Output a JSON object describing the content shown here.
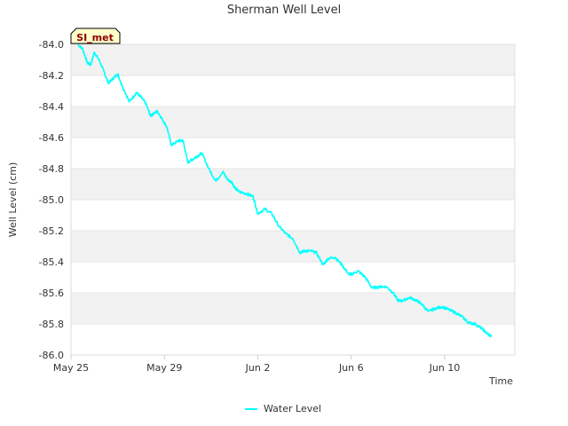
{
  "chart_data": {
    "type": "line",
    "title": "Sherman Well Level",
    "xlabel": "Time",
    "ylabel": "Well Level (cm)",
    "x_domain_days": [
      0,
      19
    ],
    "x_ticks": [
      {
        "day": 0,
        "label": "May 25"
      },
      {
        "day": 4,
        "label": "May 29"
      },
      {
        "day": 8,
        "label": "Jun 2"
      },
      {
        "day": 12,
        "label": "Jun 6"
      },
      {
        "day": 16,
        "label": "Jun 10"
      }
    ],
    "ylim": [
      -86.0,
      -84.0
    ],
    "y_ticks": [
      -84.0,
      -84.2,
      -84.4,
      -84.6,
      -84.8,
      -85.0,
      -85.2,
      -85.4,
      -85.6,
      -85.8,
      -86.0
    ],
    "y_tick_labels": [
      "-84.0",
      "-84.2",
      "-84.4",
      "-84.6",
      "-84.8",
      "-85.0",
      "-85.2",
      "-85.4",
      "-85.6",
      "-85.8",
      "-86.0"
    ],
    "grid": "horizontal bands",
    "series": [
      {
        "name": "Water Level",
        "color": "#00ffff",
        "x_days": [
          0.3,
          0.5,
          0.7,
          0.85,
          1.0,
          1.2,
          1.4,
          1.6,
          1.8,
          2.0,
          2.2,
          2.5,
          2.8,
          3.0,
          3.2,
          3.4,
          3.5,
          3.7,
          3.9,
          4.1,
          4.3,
          4.6,
          4.8,
          5.0,
          5.2,
          5.4,
          5.6,
          5.9,
          6.2,
          6.5,
          6.7,
          6.9,
          7.0,
          7.2,
          7.5,
          7.8,
          8.0,
          8.3,
          8.6,
          8.9,
          9.2,
          9.5,
          9.8,
          10.0,
          10.2,
          10.5,
          10.8,
          11.0,
          11.3,
          11.6,
          11.9,
          12.0,
          12.3,
          12.6,
          12.9,
          13.2,
          13.5,
          13.8,
          14.0,
          14.2,
          14.5,
          14.8,
          15.0,
          15.3,
          15.6,
          15.9,
          16.2,
          16.5,
          16.8,
          17.0,
          17.3,
          17.6,
          17.8,
          18.0
        ],
        "values": [
          -84.0,
          -84.03,
          -84.12,
          -84.13,
          -84.05,
          -84.1,
          -84.17,
          -84.25,
          -84.22,
          -84.19,
          -84.27,
          -84.37,
          -84.31,
          -84.34,
          -84.38,
          -84.46,
          -84.45,
          -84.43,
          -84.48,
          -84.53,
          -84.65,
          -84.62,
          -84.62,
          -84.76,
          -84.74,
          -84.72,
          -84.7,
          -84.8,
          -84.88,
          -84.82,
          -84.87,
          -84.89,
          -84.92,
          -84.95,
          -84.96,
          -84.98,
          -85.09,
          -85.06,
          -85.09,
          -85.17,
          -85.22,
          -85.25,
          -85.34,
          -85.33,
          -85.33,
          -85.34,
          -85.42,
          -85.38,
          -85.37,
          -85.42,
          -85.48,
          -85.48,
          -85.46,
          -85.5,
          -85.57,
          -85.56,
          -85.56,
          -85.6,
          -85.65,
          -85.65,
          -85.63,
          -85.65,
          -85.67,
          -85.72,
          -85.7,
          -85.69,
          -85.71,
          -85.73,
          -85.76,
          -85.79,
          -85.8,
          -85.83,
          -85.86,
          -85.88
        ]
      }
    ],
    "annotation": "SI_met",
    "legend": {
      "position": "bottom-center",
      "entries": [
        "Water Level"
      ]
    }
  },
  "colors": {
    "band": "#f2f2f2",
    "gridline": "#e6e6e6",
    "axis": "#cccccc",
    "text": "#333333",
    "badge_fill": "#ffffcc",
    "badge_text": "#8b0000"
  }
}
